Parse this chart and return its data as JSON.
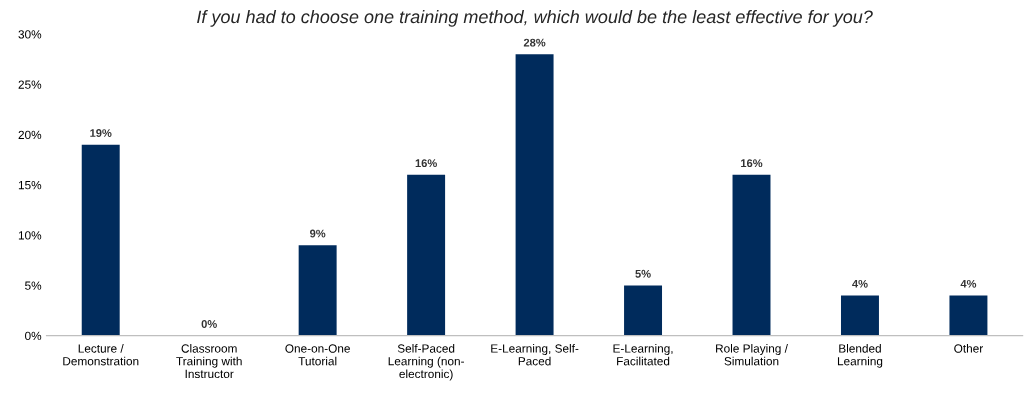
{
  "chart_data": {
    "type": "bar",
    "title": "If you had to choose one training method, which would be the least effective for you?",
    "categories": [
      "Lecture /\nDemonstration",
      "Classroom\nTraining with\nInstructor",
      "One-on-One\nTutorial",
      "Self-Paced\nLearning (non-\nelectronic)",
      "E-Learning, Self-\nPaced",
      "E-Learning,\nFacilitated",
      "Role Playing /\nSimulation",
      "Blended\nLearning",
      "Other"
    ],
    "values": [
      19,
      0,
      9,
      16,
      28,
      5,
      16,
      4,
      4
    ],
    "value_labels": [
      "19%",
      "0%",
      "9%",
      "16%",
      "28%",
      "5%",
      "16%",
      "4%",
      "4%"
    ],
    "color": "#002b5c",
    "ylim": [
      0,
      30
    ],
    "yticks": [
      {
        "value": 0,
        "label": "0%"
      },
      {
        "value": 5,
        "label": "5%"
      },
      {
        "value": 10,
        "label": "10%"
      },
      {
        "value": 15,
        "label": "15%"
      },
      {
        "value": 20,
        "label": "20%"
      },
      {
        "value": 25,
        "label": "25%"
      },
      {
        "value": 30,
        "label": "30%"
      }
    ],
    "grid": false,
    "legend": false
  }
}
